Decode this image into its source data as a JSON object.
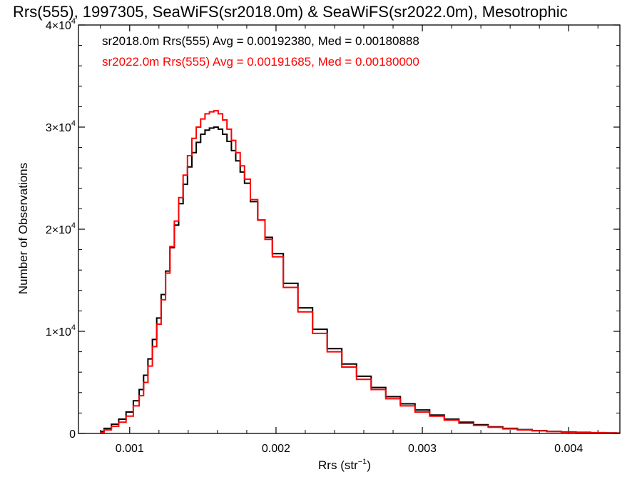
{
  "chart_data": {
    "type": "line",
    "title": "Rrs(555), 1997305, SeaWiFS(sr2018.0m) & SeaWiFS(sr2022.0m), Mesotrophic",
    "xlabel_main": "Rrs (str",
    "xlabel_sup": "−1",
    "xlabel_end": ")",
    "ylabel": "Number of Observations",
    "xlim": [
      0.00065,
      0.00435
    ],
    "ylim": [
      0,
      40000
    ],
    "x_ticks": [
      {
        "value": 0.001,
        "label": "0.001"
      },
      {
        "value": 0.002,
        "label": "0.002"
      },
      {
        "value": 0.003,
        "label": "0.003"
      },
      {
        "value": 0.004,
        "label": "0.004"
      }
    ],
    "y_ticks": [
      {
        "value": 0,
        "label": "0",
        "sup": ""
      },
      {
        "value": 10000,
        "label": "1×10",
        "sup": "4"
      },
      {
        "value": 20000,
        "label": "2×10",
        "sup": "4"
      },
      {
        "value": 30000,
        "label": "3×10",
        "sup": "4"
      },
      {
        "value": 40000,
        "label": "4×10",
        "sup": "4"
      }
    ],
    "grid": false,
    "legend_placement": "top-left",
    "annotations": [
      {
        "text": "sr2018.0m Rrs(555) Avg = 0.00192380, Med = 0.00180888",
        "color": "#000000"
      },
      {
        "text": "sr2022.0m Rrs(555) Avg = 0.00191685, Med = 0.00180000",
        "color": "#ff0000"
      }
    ],
    "series": [
      {
        "color": "#000000",
        "step": true,
        "x": [
          0.0008,
          0.00085,
          0.0009,
          0.00095,
          0.001,
          0.00105,
          0.00108,
          0.00111,
          0.00114,
          0.00117,
          0.0012,
          0.00123,
          0.00126,
          0.00129,
          0.00132,
          0.00135,
          0.00138,
          0.00141,
          0.00144,
          0.00147,
          0.0015,
          0.00153,
          0.00156,
          0.00159,
          0.00162,
          0.00165,
          0.00168,
          0.00171,
          0.00174,
          0.00177,
          0.0018,
          0.00185,
          0.0019,
          0.00195,
          0.002,
          0.0021,
          0.0022,
          0.0023,
          0.0024,
          0.0025,
          0.0026,
          0.0027,
          0.0028,
          0.0029,
          0.003,
          0.0031,
          0.0032,
          0.0033,
          0.0034,
          0.0035,
          0.0036,
          0.0037,
          0.0038,
          0.0039,
          0.004,
          0.0041,
          0.0042,
          0.0043,
          0.00435
        ],
        "y": [
          200,
          500,
          900,
          1400,
          2100,
          3200,
          4300,
          5700,
          7300,
          9200,
          11300,
          13600,
          15900,
          18200,
          20400,
          22500,
          24400,
          26100,
          27500,
          28500,
          29300,
          29700,
          29900,
          30000,
          29800,
          29300,
          28600,
          27700,
          26700,
          25600,
          24500,
          22700,
          20900,
          19200,
          17600,
          14700,
          12300,
          10200,
          8300,
          6800,
          5600,
          4500,
          3600,
          2900,
          2300,
          1800,
          1400,
          1100,
          850,
          650,
          500,
          380,
          280,
          200,
          150,
          110,
          80,
          50,
          40
        ]
      },
      {
        "color": "#ff0000",
        "step": true,
        "x": [
          0.0008,
          0.00085,
          0.0009,
          0.00095,
          0.001,
          0.00105,
          0.00108,
          0.00111,
          0.00114,
          0.00117,
          0.0012,
          0.00123,
          0.00126,
          0.00129,
          0.00132,
          0.00135,
          0.00138,
          0.00141,
          0.00144,
          0.00147,
          0.0015,
          0.00153,
          0.00156,
          0.00159,
          0.00162,
          0.00165,
          0.00168,
          0.00171,
          0.00174,
          0.00177,
          0.0018,
          0.00185,
          0.0019,
          0.00195,
          0.002,
          0.0021,
          0.0022,
          0.0023,
          0.0024,
          0.0025,
          0.0026,
          0.0027,
          0.0028,
          0.0029,
          0.003,
          0.0031,
          0.0032,
          0.0033,
          0.0034,
          0.0035,
          0.0036,
          0.0037,
          0.0038,
          0.0039,
          0.004,
          0.0041,
          0.0042,
          0.0043,
          0.00435
        ],
        "y": [
          100,
          350,
          700,
          1100,
          1700,
          2700,
          3700,
          5000,
          6600,
          8500,
          10700,
          13100,
          15700,
          18300,
          20800,
          23100,
          25300,
          27200,
          28900,
          30000,
          30800,
          31300,
          31500,
          31600,
          31300,
          30700,
          29800,
          28700,
          27500,
          26200,
          24900,
          22900,
          20900,
          19000,
          17300,
          14300,
          11900,
          9800,
          8000,
          6500,
          5300,
          4300,
          3400,
          2700,
          2100,
          1700,
          1300,
          1000,
          780,
          600,
          450,
          340,
          250,
          180,
          130,
          95,
          70,
          45,
          35
        ]
      }
    ]
  }
}
